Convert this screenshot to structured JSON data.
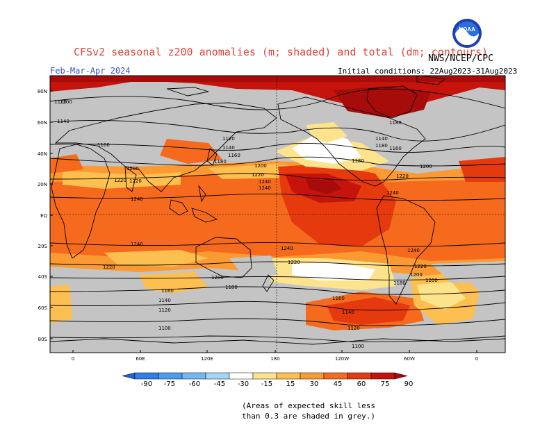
{
  "title": "CFSv2 seasonal z200 anomalies (m; shaded) and total (dm; contours)",
  "agency": "NWS/NCEP/CPC",
  "logo_text": "NOAA",
  "season": "Feb-Mar-Apr 2024",
  "initial_conditions": "Initial conditions: 22Aug2023-31Aug2023",
  "lat_labels": [
    "80N",
    "60N",
    "40N",
    "20N",
    "EQ",
    "20S",
    "40S",
    "60S",
    "80S"
  ],
  "lon_labels": [
    "0",
    "60E",
    "120E",
    "180",
    "120W",
    "60W",
    "0"
  ],
  "colorbar": {
    "ticks": [
      "-90",
      "-75",
      "-60",
      "-45",
      "-30",
      "-15",
      "15",
      "30",
      "45",
      "60",
      "75",
      "90"
    ],
    "colors": [
      "#1f62d6",
      "#2f7fe6",
      "#4a9cf0",
      "#72b8f5",
      "#a2d6f8",
      "#ffffff",
      "#fde48c",
      "#fdbf4f",
      "#fb9a32",
      "#f56a1c",
      "#e63a0e",
      "#c6140c",
      "#a80c0a"
    ]
  },
  "contour_labels": [
    "1120",
    "1140",
    "1160",
    "1200",
    "1220",
    "1240",
    "1240",
    "1220",
    "1200",
    "1180",
    "1160",
    "1140",
    "1120",
    "1100",
    "1120",
    "1140",
    "1160",
    "1180",
    "1200",
    "1220",
    "1240",
    "1240",
    "1220",
    "1200",
    "1180",
    "1160",
    "1140",
    "1120",
    "1100",
    "1180",
    "1200",
    "1220",
    "1240",
    "1240",
    "1220",
    "1200",
    "1180",
    "1140",
    "1160",
    "1180",
    "1200",
    "1220",
    "1240"
  ],
  "note_line1": "(Areas of expected skill less",
  "note_line2": "than 0.3 are shaded in grey.)",
  "colors": {
    "title": "#e2453c",
    "season": "#3650d8",
    "skill_grey": "#c4c4c4"
  }
}
